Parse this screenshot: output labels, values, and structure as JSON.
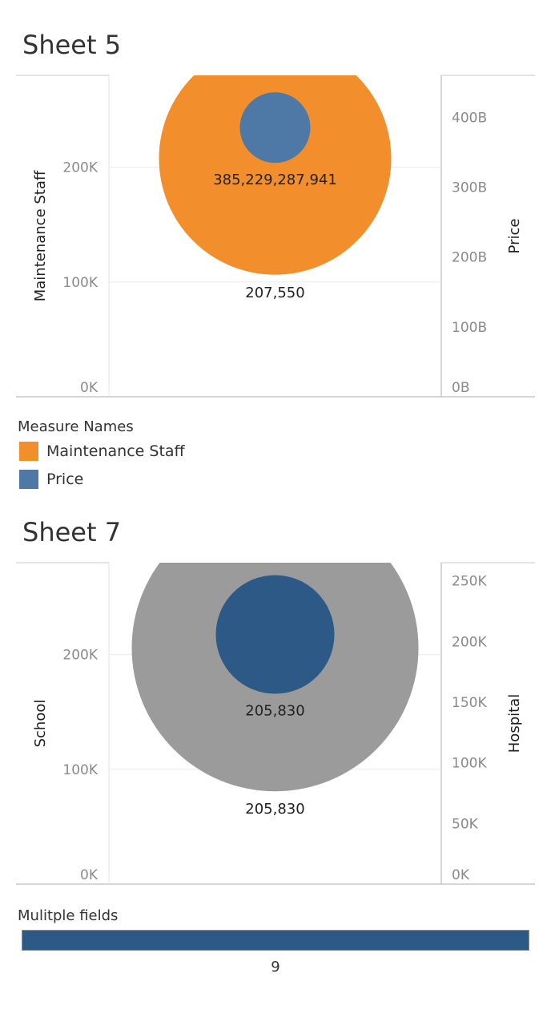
{
  "sheets": [
    {
      "title": "Sheet 5",
      "legend": {
        "title": "Measure Names",
        "items": [
          {
            "label": "Maintenance Staff",
            "color": "#f28e2b"
          },
          {
            "label": "Price",
            "color": "#4e79a7"
          }
        ]
      }
    },
    {
      "title": "Sheet 7"
    }
  ],
  "multiple_fields": {
    "title": "Mulitple fields",
    "value": "9",
    "fraction": 1.0,
    "color": "#2d5986"
  },
  "chart_data": [
    {
      "type": "scatter",
      "title": "Sheet 5",
      "dual_axis": true,
      "left_axis": {
        "label": "Maintenance Staff",
        "range": [
          0,
          280000
        ],
        "ticks": [
          0,
          100000,
          200000
        ],
        "tick_labels": [
          "0K",
          "100K",
          "200K"
        ]
      },
      "right_axis": {
        "label": "Price",
        "range": [
          0,
          460000000000
        ],
        "ticks": [
          0,
          100000000000,
          200000000000,
          300000000000,
          400000000000
        ],
        "tick_labels": [
          "0B",
          "100B",
          "200B",
          "300B",
          "400B"
        ]
      },
      "series": [
        {
          "name": "Maintenance Staff",
          "axis": "left",
          "value": 207550,
          "label": "207,550",
          "color": "#f28e2b",
          "size": "large"
        },
        {
          "name": "Price",
          "axis": "right",
          "value": 385229287941,
          "label": "385,229,287,941",
          "color": "#4e79a7",
          "size": "small"
        }
      ],
      "legend": "below",
      "grid": true
    },
    {
      "type": "scatter",
      "title": "Sheet 7",
      "dual_axis": true,
      "left_axis": {
        "label": "School",
        "range": [
          0,
          280000
        ],
        "ticks": [
          0,
          100000,
          200000
        ],
        "tick_labels": [
          "0K",
          "100K",
          "200K"
        ]
      },
      "right_axis": {
        "label": "Hospital",
        "range": [
          0,
          265000
        ],
        "ticks": [
          0,
          50000,
          100000,
          150000,
          200000,
          250000
        ],
        "tick_labels": [
          "0K",
          "50K",
          "100K",
          "150K",
          "200K",
          "250K"
        ]
      },
      "series": [
        {
          "name": "School",
          "axis": "left",
          "value": 205830,
          "label": "205,830",
          "color": "#9b9b9b",
          "size": "large"
        },
        {
          "name": "Hospital",
          "axis": "right",
          "value": 205830,
          "label": "205,830",
          "color": "#2d5986",
          "size": "small"
        }
      ],
      "grid": true
    }
  ]
}
